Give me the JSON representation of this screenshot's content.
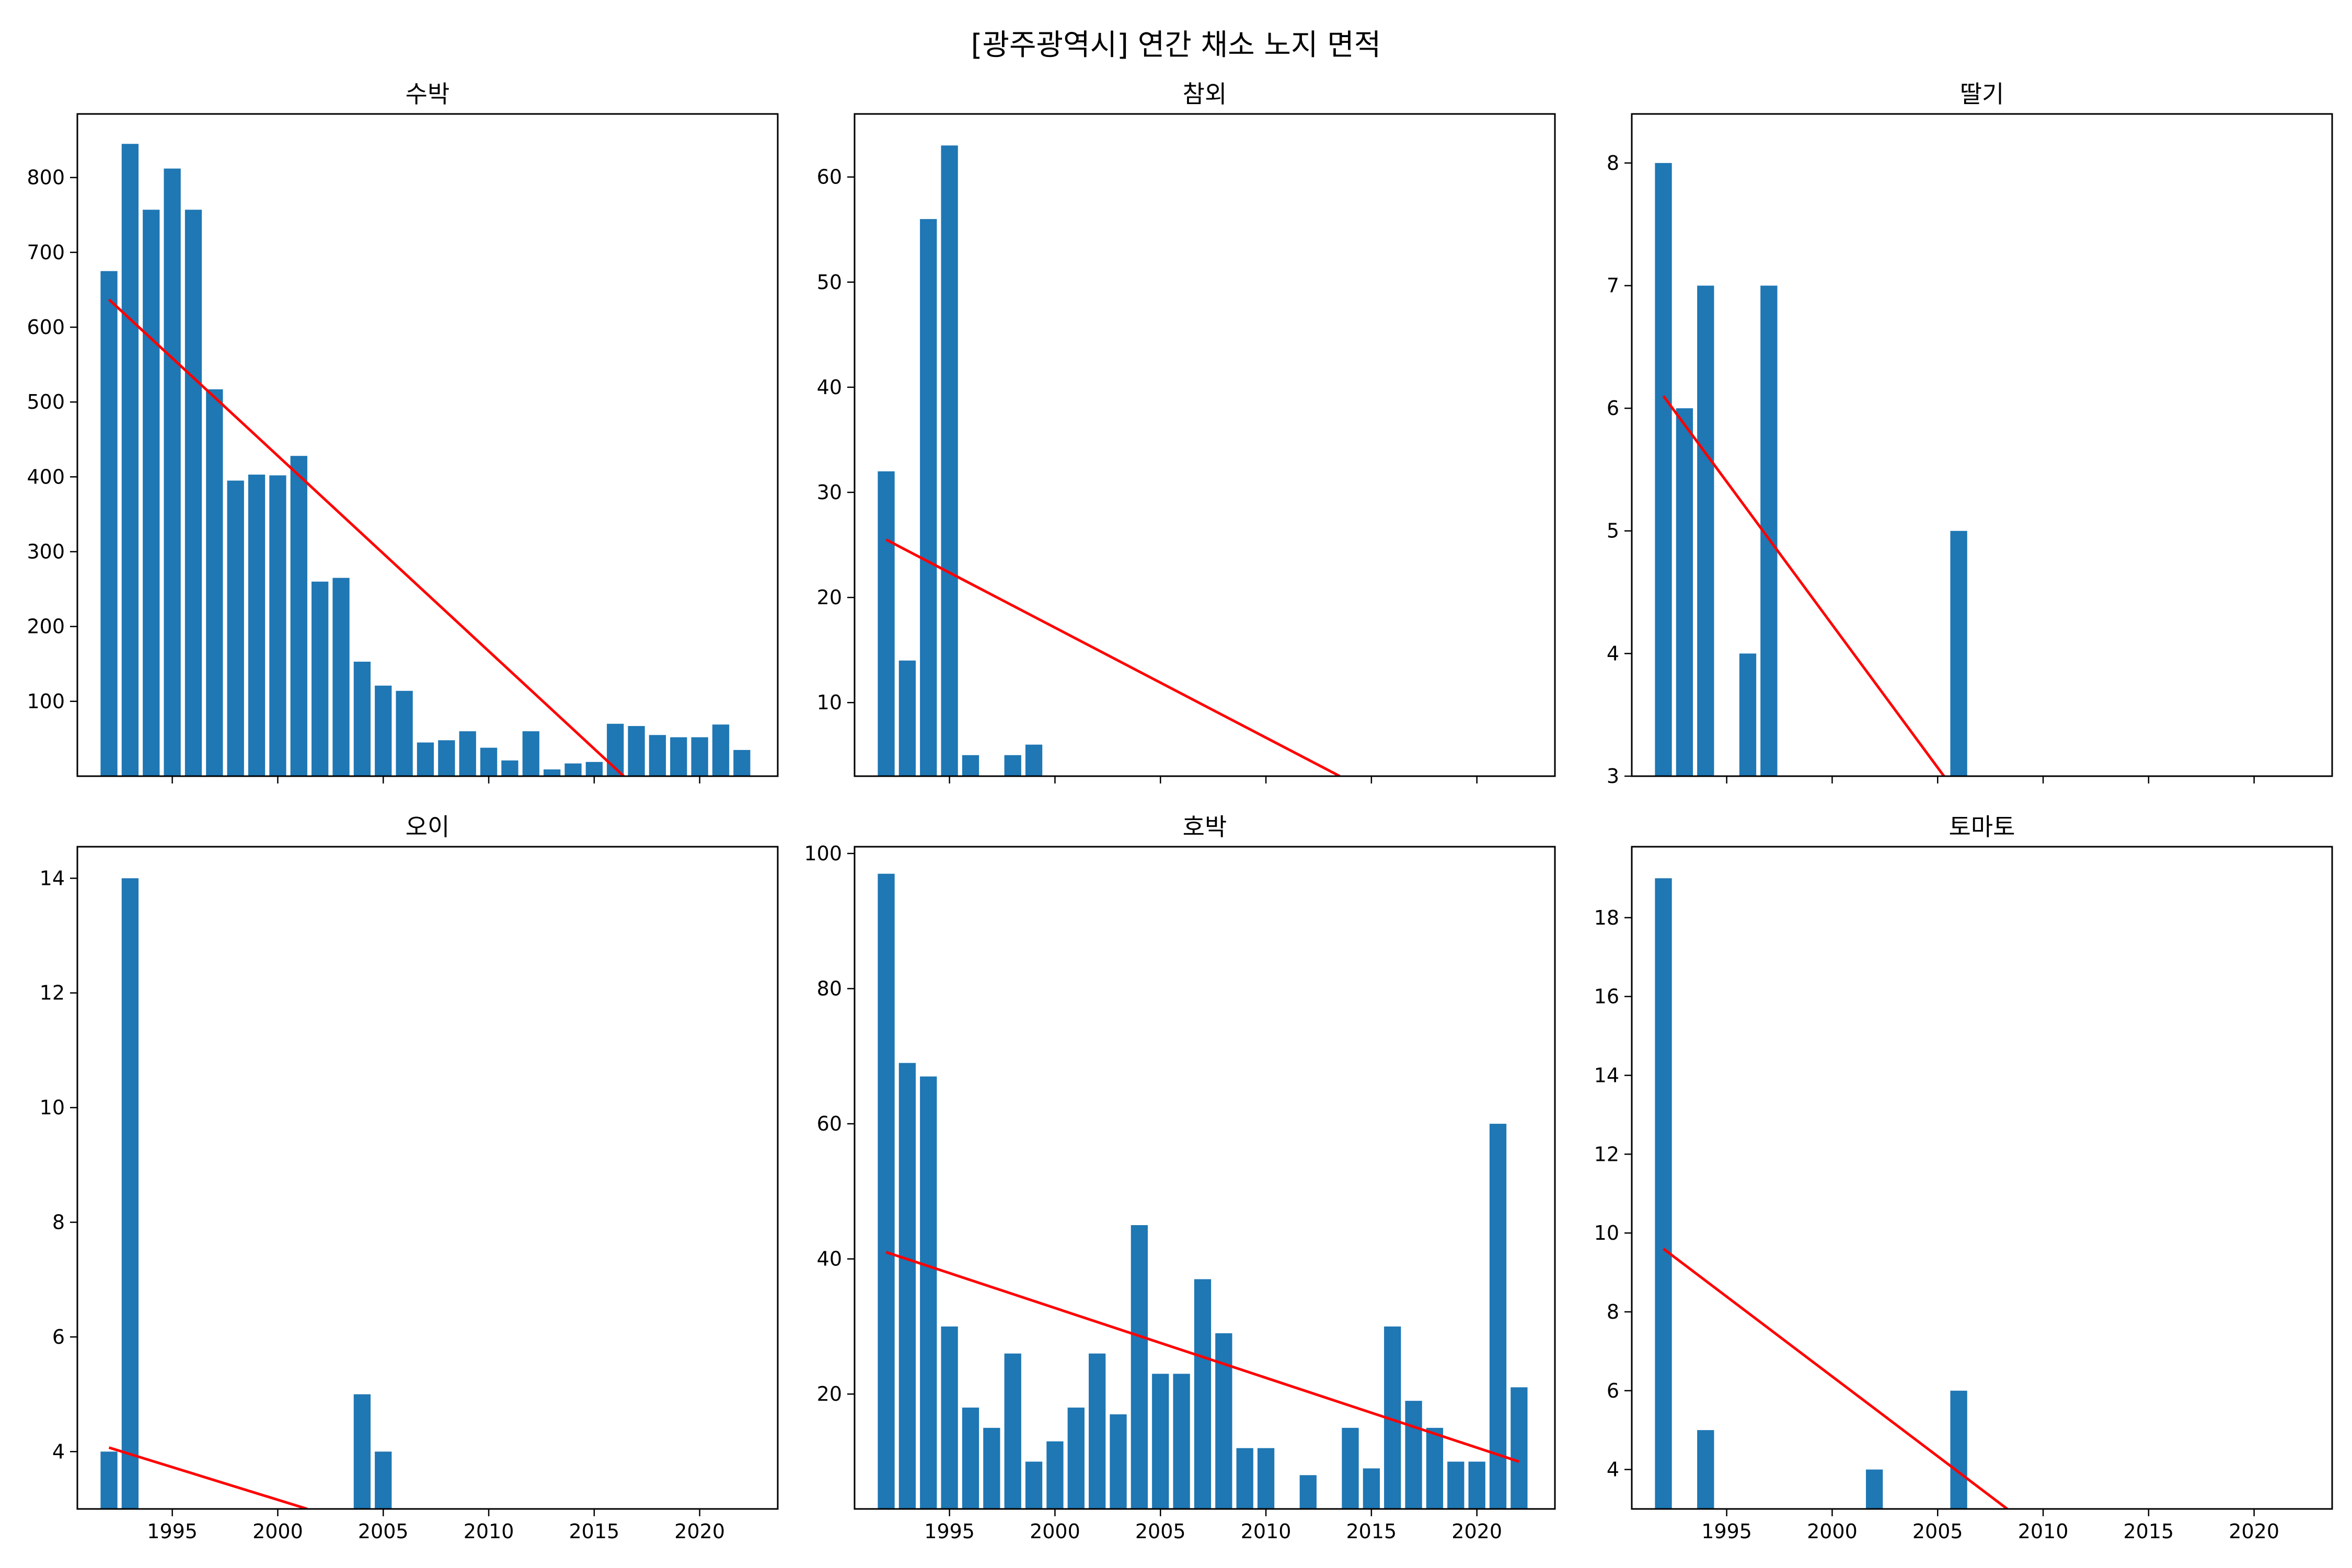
{
  "title": "[광주광역시] 연간 채소 노지 면적",
  "colors": {
    "bar": "#1f77b4",
    "trend": "#ff0000"
  },
  "x_ticks": [
    1995,
    2000,
    2005,
    2010,
    2015,
    2020
  ],
  "chart_data": [
    {
      "type": "bar",
      "title": "수박",
      "x": [
        1992,
        1993,
        1994,
        1995,
        1996,
        1997,
        1998,
        1999,
        2000,
        2001,
        2002,
        2003,
        2004,
        2005,
        2006,
        2007,
        2008,
        2009,
        2010,
        2011,
        2012,
        2013,
        2014,
        2015,
        2016,
        2017,
        2018,
        2019,
        2020,
        2021,
        2022
      ],
      "values": [
        675,
        845,
        757,
        812,
        757,
        517,
        395,
        403,
        402,
        428,
        260,
        265,
        153,
        121,
        114,
        45,
        48,
        60,
        38,
        21,
        60,
        9,
        17,
        19,
        70,
        67,
        55,
        52,
        52,
        69,
        35
      ],
      "trend": {
        "x": [
          1992,
          2016.4
        ],
        "y": [
          637,
          0
        ]
      },
      "xlim": [
        1990.5,
        2023.7
      ],
      "ylim": [
        0,
        885
      ],
      "y_ticks": [
        100,
        200,
        300,
        400,
        500,
        600,
        700,
        800
      ],
      "show_x_labels": false
    },
    {
      "type": "bar",
      "title": "참외",
      "x": [
        1992,
        1993,
        1994,
        1995,
        1996,
        1998,
        1999
      ],
      "values": [
        32,
        14,
        56,
        63,
        5,
        5,
        6
      ],
      "trend": {
        "x": [
          1992,
          2013.5
        ],
        "y": [
          25.5,
          3
        ]
      },
      "xlim": [
        1990.5,
        2023.7
      ],
      "ylim": [
        3,
        66
      ],
      "y_ticks": [
        10,
        20,
        30,
        40,
        50,
        60
      ],
      "show_x_labels": false
    },
    {
      "type": "bar",
      "title": "딸기",
      "x": [
        1992,
        1993,
        1994,
        1996,
        1997,
        2006
      ],
      "values": [
        8,
        6,
        7,
        4,
        7,
        5
      ],
      "trend": {
        "x": [
          1992,
          2005.3
        ],
        "y": [
          6.1,
          3
        ]
      },
      "xlim": [
        1990.5,
        2023.7
      ],
      "ylim": [
        3,
        8.4
      ],
      "y_ticks": [
        3,
        4,
        5,
        6,
        7,
        8
      ],
      "show_x_labels": false
    },
    {
      "type": "bar",
      "title": "오이",
      "x": [
        1992,
        1993,
        2004,
        2005
      ],
      "values": [
        4,
        14,
        5,
        4
      ],
      "trend": {
        "x": [
          1992,
          2001.4
        ],
        "y": [
          4.07,
          3
        ]
      },
      "xlim": [
        1990.5,
        2023.7
      ],
      "ylim": [
        3,
        14.55
      ],
      "y_ticks": [
        4,
        6,
        8,
        10,
        12,
        14
      ],
      "show_x_labels": true
    },
    {
      "type": "bar",
      "title": "호박",
      "x": [
        1992,
        1993,
        1994,
        1995,
        1996,
        1997,
        1998,
        1999,
        2000,
        2001,
        2002,
        2003,
        2004,
        2005,
        2006,
        2007,
        2008,
        2009,
        2010,
        2012,
        2014,
        2015,
        2016,
        2017,
        2018,
        2019,
        2020,
        2021,
        2022
      ],
      "values": [
        97,
        69,
        67,
        30,
        18,
        15,
        26,
        10,
        13,
        18,
        26,
        17,
        45,
        23,
        23,
        37,
        29,
        12,
        12,
        8,
        15,
        9,
        30,
        19,
        15,
        10,
        10,
        60,
        21
      ],
      "trend": {
        "x": [
          1992,
          2022
        ],
        "y": [
          41,
          10
        ]
      },
      "xlim": [
        1990.5,
        2023.7
      ],
      "ylim": [
        3,
        101
      ],
      "y_ticks": [
        20,
        40,
        60,
        80,
        100
      ],
      "show_x_labels": true
    },
    {
      "type": "bar",
      "title": "토마토",
      "x": [
        1992,
        1994,
        2002,
        2006
      ],
      "values": [
        19,
        5,
        4,
        6
      ],
      "trend": {
        "x": [
          1992,
          2008.3
        ],
        "y": [
          9.6,
          3
        ]
      },
      "xlim": [
        1990.5,
        2023.7
      ],
      "ylim": [
        3,
        19.8
      ],
      "y_ticks": [
        4,
        6,
        8,
        10,
        12,
        14,
        16,
        18
      ],
      "show_x_labels": true
    }
  ]
}
